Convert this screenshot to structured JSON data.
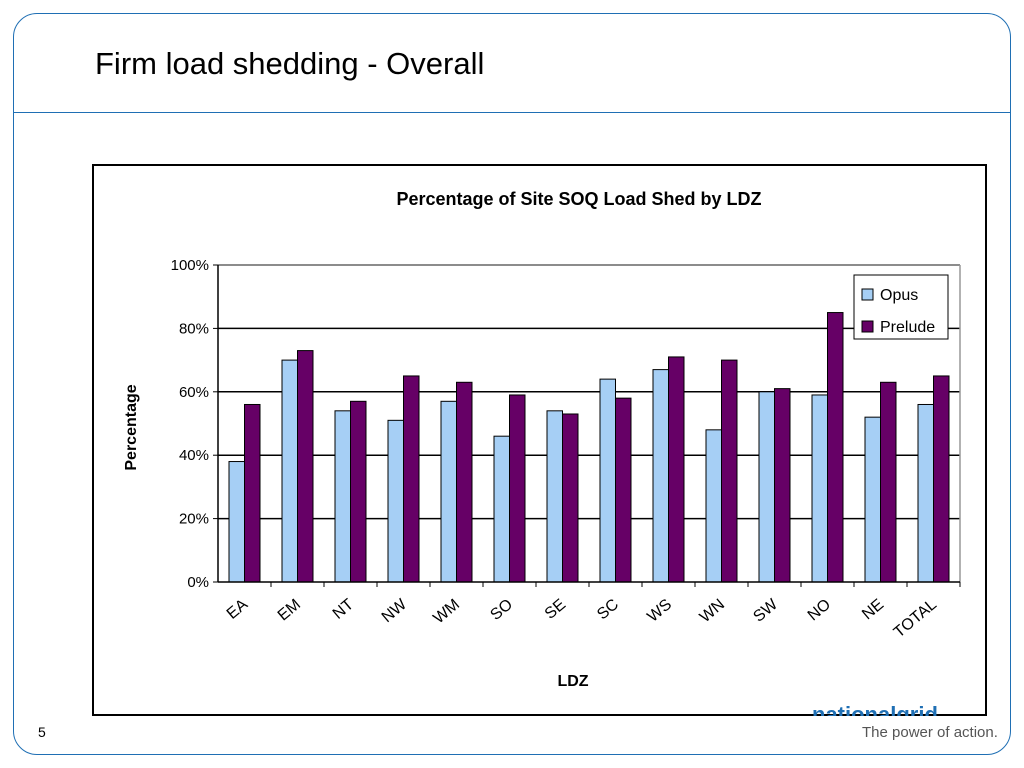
{
  "slide": {
    "title": "Firm load shedding - Overall",
    "page_number": "5",
    "logo_text": "nationalgrid",
    "tagline": "The power of action."
  },
  "colors": {
    "frame": "#1f6fb4",
    "opus": "#a6cff5",
    "prelude": "#660066"
  },
  "chart_data": {
    "type": "bar",
    "title": "Percentage of Site SOQ Load Shed by LDZ",
    "xlabel": "LDZ",
    "ylabel": "Percentage",
    "ylim": [
      0,
      100
    ],
    "yticks": [
      "0%",
      "20%",
      "40%",
      "60%",
      "80%",
      "100%"
    ],
    "grid": true,
    "legend_position": "top-right",
    "categories": [
      "EA",
      "EM",
      "NT",
      "NW",
      "WM",
      "SO",
      "SE",
      "SC",
      "WS",
      "WN",
      "SW",
      "NO",
      "NE",
      "TOTAL"
    ],
    "series": [
      {
        "name": "Opus",
        "color": "#a6cff5",
        "values": [
          38,
          70,
          54,
          51,
          57,
          46,
          54,
          64,
          67,
          48,
          60,
          59,
          52,
          56
        ]
      },
      {
        "name": "Prelude",
        "color": "#660066",
        "values": [
          56,
          73,
          57,
          65,
          63,
          59,
          53,
          58,
          71,
          70,
          61,
          85,
          63,
          65
        ]
      }
    ]
  }
}
